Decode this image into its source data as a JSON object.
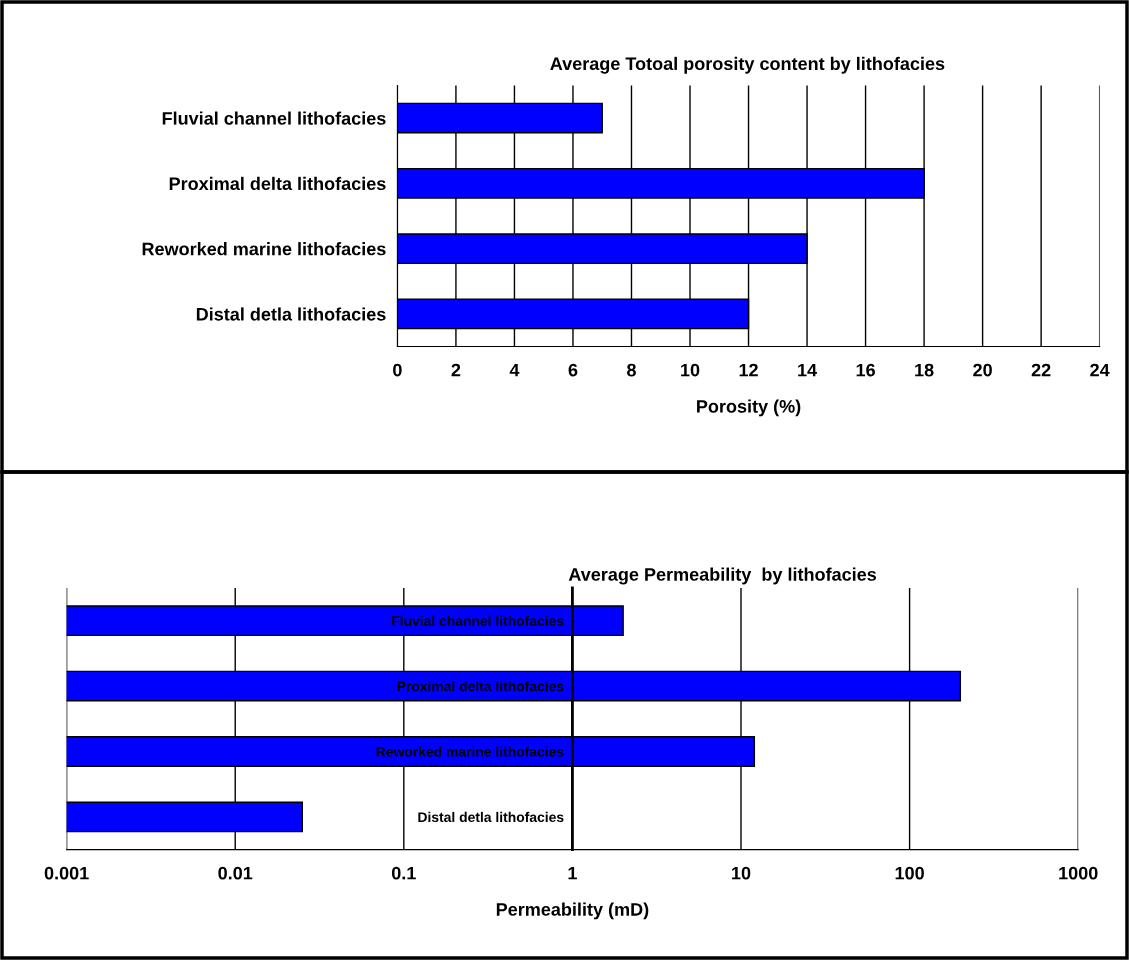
{
  "chart_data": [
    {
      "type": "bar",
      "orientation": "horizontal",
      "title": "Average Totoal porosity content by lithofacies",
      "xlabel": "Porosity (%)",
      "categories": [
        "Fluvial channel lithofacies",
        "Proximal delta lithofacies",
        "Reworked marine lithofacies",
        "Distal detla lithofacies"
      ],
      "values": [
        7,
        18,
        14,
        12
      ],
      "color": "#0000ff",
      "xlim": [
        0,
        24
      ],
      "xticks": [
        0,
        2,
        4,
        6,
        8,
        10,
        12,
        14,
        16,
        18,
        20,
        22,
        24
      ],
      "grid": "x"
    },
    {
      "type": "bar",
      "orientation": "horizontal",
      "title": "Average Permeability  by lithofacies",
      "xlabel": "Permeability (mD)",
      "categories": [
        "Fluvial channel lithofacies",
        "Proximal delta lithofacies",
        "Reworked marine lithofacies",
        "Distal detla lithofacies"
      ],
      "values": [
        2,
        200,
        12,
        0.025
      ],
      "color": "#0000ff",
      "log": "x",
      "xlim": [
        0.001,
        1000
      ],
      "xticks": [
        0.001,
        0.01,
        0.1,
        1,
        10,
        100,
        1000
      ],
      "grid": "x"
    }
  ]
}
